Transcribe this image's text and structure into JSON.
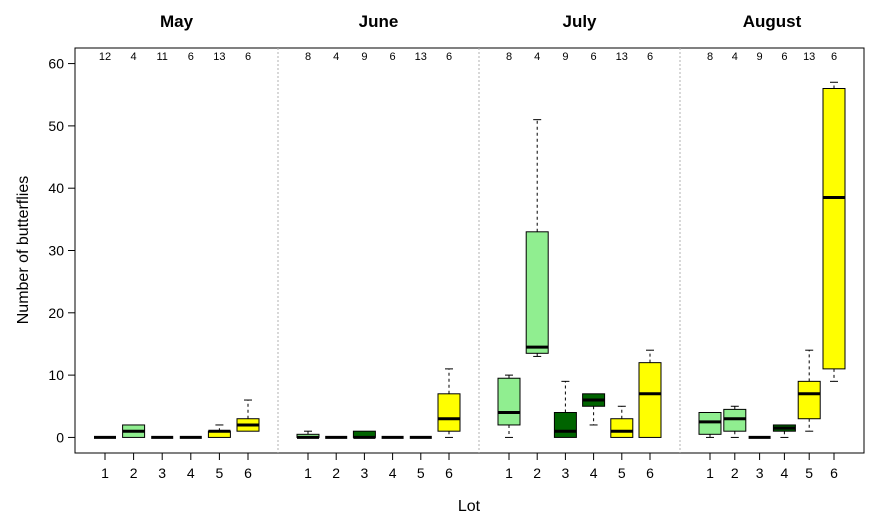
{
  "chart_data": {
    "type": "box",
    "xlabel": "Lot",
    "ylabel": "Number of butterflies",
    "ylim": [
      -2.5,
      62.5
    ],
    "yticks": [
      0,
      10,
      20,
      30,
      40,
      50,
      60
    ],
    "lots": [
      "1",
      "2",
      "3",
      "4",
      "5",
      "6"
    ],
    "lot_colors": [
      "#90ee90",
      "#90ee90",
      "#006400",
      "#006400",
      "#ffff00",
      "#ffff00"
    ],
    "panels": [
      {
        "month": "May",
        "counts": [
          "12",
          "4",
          "11",
          "6",
          "13",
          "6"
        ],
        "boxes": [
          {
            "lot": "1",
            "min": 0,
            "q1": 0,
            "median": 0,
            "q3": 0,
            "max": 0
          },
          {
            "lot": "2",
            "min": 0,
            "q1": 0,
            "median": 1,
            "q3": 2,
            "max": 2
          },
          {
            "lot": "3",
            "min": 0,
            "q1": 0,
            "median": 0,
            "q3": 0,
            "max": 0
          },
          {
            "lot": "4",
            "min": 0,
            "q1": 0,
            "median": 0,
            "q3": 0,
            "max": 0
          },
          {
            "lot": "5",
            "min": 0,
            "q1": 0,
            "median": 1,
            "q3": 1,
            "max": 2
          },
          {
            "lot": "6",
            "min": 1,
            "q1": 1,
            "median": 2,
            "q3": 3,
            "max": 6
          }
        ]
      },
      {
        "month": "June",
        "counts": [
          "8",
          "4",
          "9",
          "6",
          "13",
          "6"
        ],
        "boxes": [
          {
            "lot": "1",
            "min": 0,
            "q1": 0,
            "median": 0,
            "q3": 0.5,
            "max": 1
          },
          {
            "lot": "2",
            "min": 0,
            "q1": 0,
            "median": 0,
            "q3": 0,
            "max": 0
          },
          {
            "lot": "3",
            "min": 0,
            "q1": 0,
            "median": 0,
            "q3": 1,
            "max": 1
          },
          {
            "lot": "4",
            "min": 0,
            "q1": 0,
            "median": 0,
            "q3": 0,
            "max": 0
          },
          {
            "lot": "5",
            "min": 0,
            "q1": 0,
            "median": 0,
            "q3": 0,
            "max": 0
          },
          {
            "lot": "6",
            "min": 0,
            "q1": 1,
            "median": 3,
            "q3": 7,
            "max": 11
          }
        ]
      },
      {
        "month": "July",
        "counts": [
          "8",
          "4",
          "9",
          "6",
          "13",
          "6"
        ],
        "boxes": [
          {
            "lot": "1",
            "min": 0,
            "q1": 2,
            "median": 4,
            "q3": 9.5,
            "max": 10
          },
          {
            "lot": "2",
            "min": 13,
            "q1": 13.5,
            "median": 14.5,
            "q3": 33,
            "max": 51
          },
          {
            "lot": "3",
            "min": 0,
            "q1": 0,
            "median": 1,
            "q3": 4,
            "max": 9
          },
          {
            "lot": "4",
            "min": 2,
            "q1": 5,
            "median": 6,
            "q3": 7,
            "max": 7
          },
          {
            "lot": "5",
            "min": 0,
            "q1": 0,
            "median": 1,
            "q3": 3,
            "max": 5
          },
          {
            "lot": "6",
            "min": 0,
            "q1": 0,
            "median": 7,
            "q3": 12,
            "max": 14
          }
        ]
      },
      {
        "month": "August",
        "counts": [
          "8",
          "4",
          "9",
          "6",
          "13",
          "6"
        ],
        "boxes": [
          {
            "lot": "1",
            "min": 0,
            "q1": 0.5,
            "median": 2.5,
            "q3": 4,
            "max": 4
          },
          {
            "lot": "2",
            "min": 0,
            "q1": 1,
            "median": 3,
            "q3": 4.5,
            "max": 5
          },
          {
            "lot": "3",
            "min": 0,
            "q1": 0,
            "median": 0,
            "q3": 0,
            "max": 0
          },
          {
            "lot": "4",
            "min": 0,
            "q1": 1,
            "median": 1.5,
            "q3": 2,
            "max": 2
          },
          {
            "lot": "5",
            "min": 1,
            "q1": 3,
            "median": 7,
            "q3": 9,
            "max": 14
          },
          {
            "lot": "6",
            "min": 9,
            "q1": 11,
            "median": 38.5,
            "q3": 56,
            "max": 57
          }
        ]
      }
    ]
  }
}
